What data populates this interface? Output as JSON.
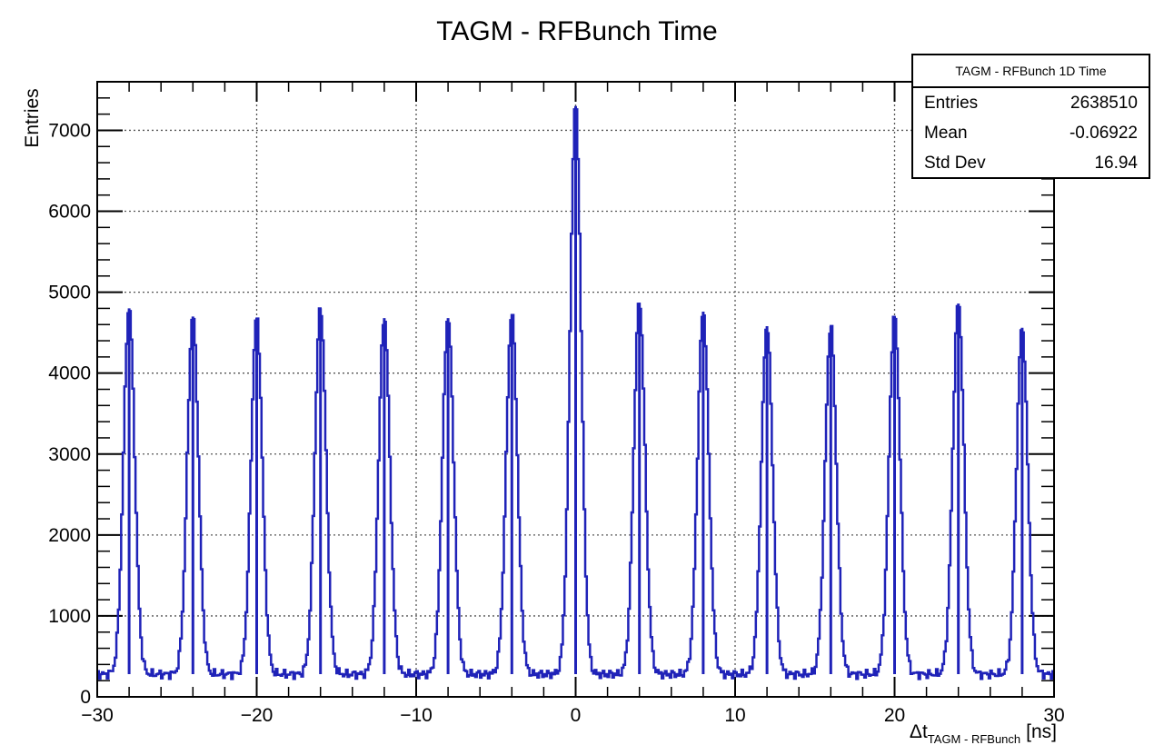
{
  "chart_data": {
    "type": "histogram",
    "title": "TAGM - RFBunch Time",
    "xlabel_main": "Δt",
    "xlabel_sub": "TAGM - RFBunch",
    "xlabel_unit": "[ns]",
    "ylabel": "Entries",
    "xlim": [
      -30,
      30
    ],
    "ylim": [
      0,
      7600
    ],
    "x_ticks": [
      -30,
      -20,
      -10,
      0,
      10,
      20,
      30
    ],
    "y_ticks": [
      0,
      1000,
      2000,
      3000,
      4000,
      5000,
      6000,
      7000
    ],
    "grid": true,
    "line_color": "#1f22b8",
    "baseline": 280,
    "peak_width_ns": 0.35,
    "peaks": [
      {
        "x": -28,
        "y": 4800
      },
      {
        "x": -24,
        "y": 4700
      },
      {
        "x": -20,
        "y": 4680
      },
      {
        "x": -16,
        "y": 4800
      },
      {
        "x": -12,
        "y": 4680
      },
      {
        "x": -8,
        "y": 4680
      },
      {
        "x": -4,
        "y": 4730
      },
      {
        "x": 0,
        "y": 7300
      },
      {
        "x": 4,
        "y": 4870
      },
      {
        "x": 8,
        "y": 4760
      },
      {
        "x": 12,
        "y": 4580
      },
      {
        "x": 16,
        "y": 4580
      },
      {
        "x": 20,
        "y": 4700
      },
      {
        "x": 24,
        "y": 4860
      },
      {
        "x": 28,
        "y": 4560
      }
    ]
  },
  "stats_box": {
    "title": "TAGM - RFBunch 1D Time",
    "rows": [
      {
        "label": "Entries",
        "value": "2638510"
      },
      {
        "label": "Mean",
        "value": "-0.06922"
      },
      {
        "label": "Std Dev",
        "value": "16.94"
      }
    ]
  }
}
